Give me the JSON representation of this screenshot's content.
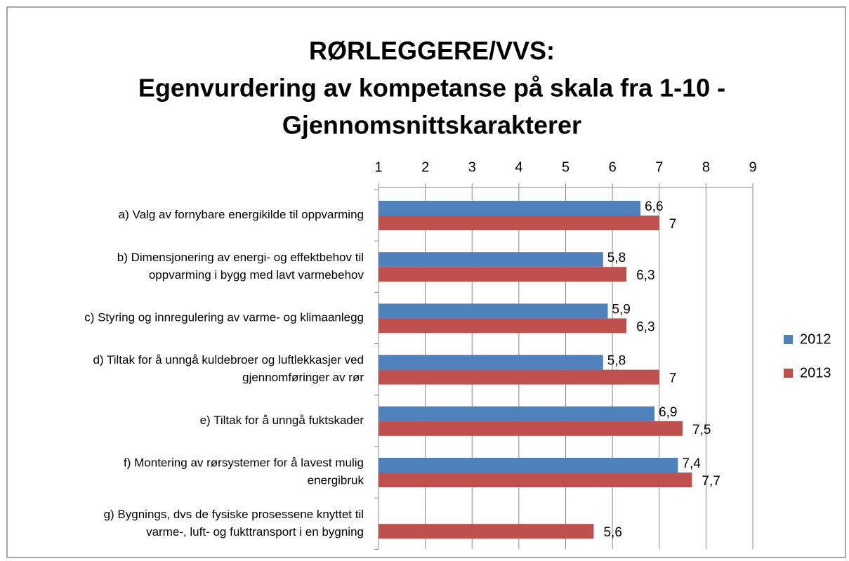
{
  "chart_data": {
    "type": "barh",
    "title": [
      "RØRLEGGERE/VVS:",
      "Egenvurdering av kompetanse på skala fra 1-10 -",
      "Gjennomsnittskarakterer"
    ],
    "categories": [
      [
        "a) Valg av fornybare energikilde til oppvarming"
      ],
      [
        "b) Dimensjonering av energi- og effektbehov til",
        "oppvarming i bygg med lavt varmebehov"
      ],
      [
        "c) Styring og innregulering av varme- og klimaanlegg"
      ],
      [
        "d) Tiltak for å unngå kuldebroer og luftlekkasjer ved",
        "gjennomføringer av rør"
      ],
      [
        "e) Tiltak for å unngå fuktskader"
      ],
      [
        "f) Montering av rørsystemer for å lavest mulig",
        "energibruk"
      ],
      [
        "g) Bygnings, dvs de fysiske prosessene knyttet til",
        "varme-, luft- og fukttransport i en bygning"
      ]
    ],
    "series": [
      {
        "name": "2012",
        "color": "#4f81bd",
        "values": [
          6.6,
          5.8,
          5.9,
          5.8,
          6.9,
          7.4,
          null
        ],
        "value_labels": [
          "6,6",
          "5,8",
          "5,9",
          "5,8",
          "6,9",
          "7,4",
          null
        ]
      },
      {
        "name": "2013",
        "color": "#c0504d",
        "values": [
          7,
          6.3,
          6.3,
          7,
          7.5,
          7.7,
          5.6
        ],
        "value_labels": [
          "7",
          "6,3",
          "6,3",
          "7",
          "7,5",
          "7,7",
          "5,6"
        ]
      }
    ],
    "xlim": [
      1,
      9
    ],
    "xticks": [
      1,
      2,
      3,
      4,
      5,
      6,
      7,
      8,
      9
    ],
    "grid": true,
    "legend": "right"
  }
}
